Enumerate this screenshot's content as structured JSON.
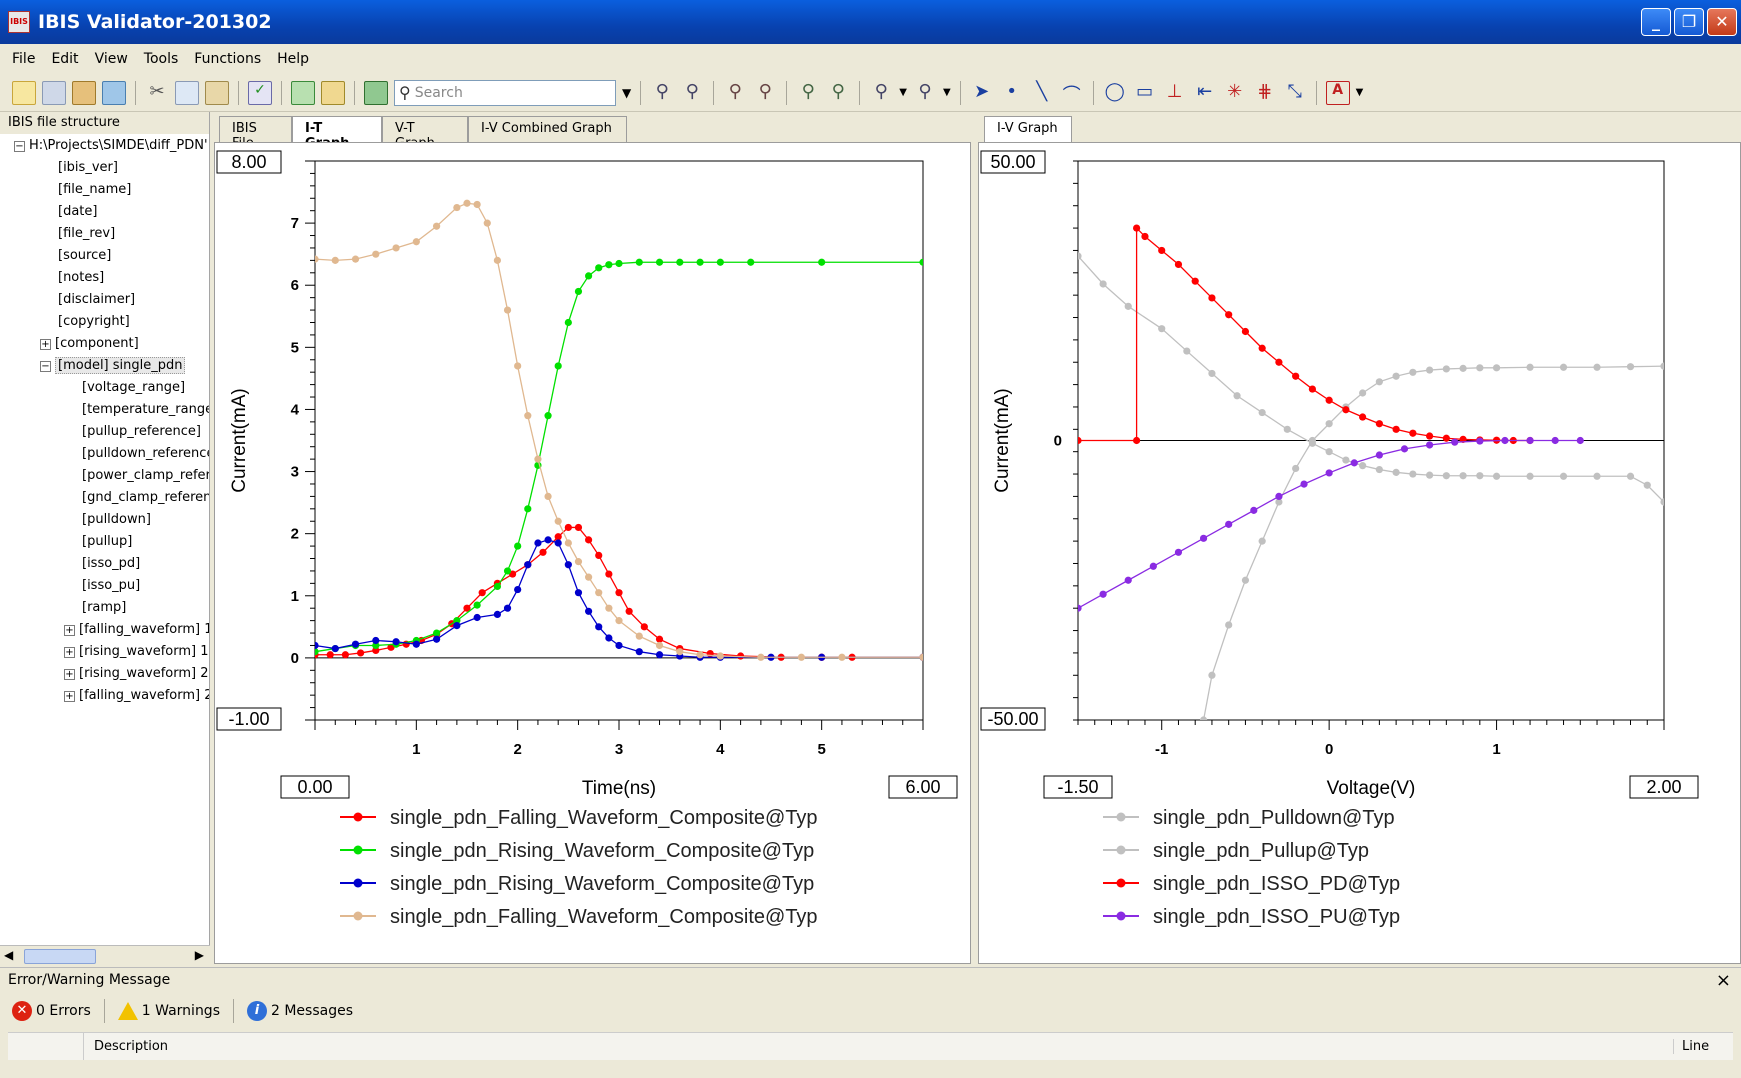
{
  "window": {
    "title": "IBIS Validator-201302",
    "app_icon_text": "IBIS"
  },
  "menu": [
    "File",
    "Edit",
    "View",
    "Tools",
    "Functions",
    "Help"
  ],
  "toolbar": {
    "search_placeholder": "Search"
  },
  "left_panel": {
    "header": "IBIS file structure",
    "root": "H:\\Projects\\SIMDE\\diff_PDN'",
    "items": [
      "[ibis_ver]",
      "[file_name]",
      "[date]",
      "[file_rev]",
      "[source]",
      "[notes]",
      "[disclaimer]",
      "[copyright]"
    ],
    "component": "[component]",
    "model": "[model] single_pdn",
    "model_items": [
      "[voltage_range]",
      "[temperature_range",
      "[pullup_reference]",
      "[pulldown_reference",
      "[power_clamp_refer",
      "[gnd_clamp_referen",
      "[pulldown]",
      "[pullup]",
      "[isso_pd]",
      "[isso_pu]",
      "[ramp]"
    ],
    "waveforms": [
      "[falling_waveform] 1",
      "[rising_waveform] 1",
      "[rising_waveform] 2",
      "[falling_waveform] 2"
    ]
  },
  "center_tabs": [
    "IBIS File",
    "I-T Graph",
    "V-T Graph",
    "I-V Combined Graph"
  ],
  "right_tabs": [
    "I-V Graph"
  ],
  "chart_data": [
    {
      "type": "line",
      "xlabel": "Time(ns)",
      "ylabel": "Current(mA)",
      "xlim": [
        0,
        6
      ],
      "ylim": [
        -1,
        8
      ],
      "xlim_labels": [
        "0.00",
        "6.00"
      ],
      "ylim_labels": [
        "8.00",
        "-1.00"
      ],
      "xticks": [
        "1",
        "2",
        "3",
        "4",
        "5"
      ],
      "yticks": [
        "7",
        "6",
        "5",
        "4",
        "3",
        "2",
        "1",
        "0"
      ],
      "series": [
        {
          "name": "single_pdn_Falling_Waveform_Composite@Typ",
          "color": "#ff0000",
          "x": [
            0,
            0.15,
            0.3,
            0.45,
            0.6,
            0.75,
            0.9,
            1.05,
            1.2,
            1.35,
            1.5,
            1.65,
            1.8,
            1.95,
            2.1,
            2.25,
            2.4,
            2.5,
            2.6,
            2.7,
            2.8,
            2.9,
            3.0,
            3.1,
            3.25,
            3.4,
            3.6,
            3.9,
            4.2,
            4.6,
            5.0,
            5.3,
            6.0
          ],
          "y": [
            0.05,
            0.05,
            0.05,
            0.08,
            0.12,
            0.17,
            0.22,
            0.28,
            0.38,
            0.55,
            0.8,
            1.05,
            1.2,
            1.35,
            1.5,
            1.7,
            1.95,
            2.1,
            2.1,
            1.9,
            1.65,
            1.35,
            1.05,
            0.75,
            0.5,
            0.3,
            0.15,
            0.07,
            0.03,
            0.01,
            0.01,
            0.01,
            0.01
          ]
        },
        {
          "name": "single_pdn_Rising_Waveform_Composite@Typ",
          "color": "#00e000",
          "x": [
            0,
            0.2,
            0.4,
            0.6,
            0.8,
            1.0,
            1.2,
            1.4,
            1.6,
            1.8,
            1.9,
            2.0,
            2.1,
            2.2,
            2.3,
            2.4,
            2.5,
            2.6,
            2.7,
            2.8,
            2.9,
            3.0,
            3.2,
            3.4,
            3.6,
            3.8,
            4.0,
            4.3,
            5,
            6
          ],
          "y": [
            0.1,
            0.15,
            0.2,
            0.2,
            0.22,
            0.28,
            0.4,
            0.6,
            0.85,
            1.15,
            1.4,
            1.8,
            2.4,
            3.1,
            3.9,
            4.7,
            5.4,
            5.9,
            6.15,
            6.28,
            6.33,
            6.35,
            6.37,
            6.37,
            6.37,
            6.37,
            6.37,
            6.37,
            6.37,
            6.37
          ]
        },
        {
          "name": "single_pdn_Rising_Waveform_Composite@Typ",
          "color": "#0000cc",
          "x": [
            0,
            0.2,
            0.4,
            0.6,
            0.8,
            1.0,
            1.2,
            1.4,
            1.6,
            1.8,
            1.9,
            2.0,
            2.1,
            2.2,
            2.3,
            2.4,
            2.5,
            2.6,
            2.7,
            2.8,
            2.9,
            3.0,
            3.2,
            3.4,
            3.6,
            3.8,
            4.0,
            4.5,
            5,
            6
          ],
          "y": [
            0.2,
            0.15,
            0.22,
            0.28,
            0.26,
            0.22,
            0.3,
            0.52,
            0.65,
            0.7,
            0.8,
            1.1,
            1.5,
            1.85,
            1.9,
            1.85,
            1.5,
            1.05,
            0.75,
            0.5,
            0.32,
            0.2,
            0.1,
            0.05,
            0.03,
            0.01,
            0.01,
            0.01,
            0.01,
            0.01
          ]
        },
        {
          "name": "single_pdn_Falling_Waveform_Composite@Typ",
          "color": "#e0b890",
          "x": [
            0,
            0.2,
            0.4,
            0.6,
            0.8,
            1.0,
            1.2,
            1.4,
            1.5,
            1.6,
            1.7,
            1.8,
            1.9,
            2.0,
            2.1,
            2.2,
            2.3,
            2.4,
            2.5,
            2.6,
            2.7,
            2.8,
            2.9,
            3.0,
            3.2,
            3.4,
            3.6,
            3.8,
            4.0,
            4.4,
            4.8,
            5.2,
            6.0
          ],
          "y": [
            6.42,
            6.4,
            6.42,
            6.5,
            6.6,
            6.7,
            6.95,
            7.25,
            7.32,
            7.3,
            7.0,
            6.4,
            5.6,
            4.7,
            3.9,
            3.2,
            2.6,
            2.2,
            1.85,
            1.55,
            1.3,
            1.05,
            0.8,
            0.6,
            0.35,
            0.2,
            0.1,
            0.05,
            0.03,
            0.01,
            0.01,
            0.01,
            0.01
          ]
        }
      ]
    },
    {
      "type": "line",
      "xlabel": "Voltage(V)",
      "ylabel": "Current(mA)",
      "xlim": [
        -1.5,
        2.0
      ],
      "ylim": [
        -50,
        50
      ],
      "xlim_labels": [
        "-1.50",
        "2.00"
      ],
      "ylim_labels": [
        "50.00",
        "-50.00"
      ],
      "xticks": [
        "-1",
        "0",
        "1"
      ],
      "yticks": [
        "0"
      ],
      "series": [
        {
          "name": "single_pdn_Pulldown@Typ",
          "color": "#c0c0c0",
          "x": [
            -1.5,
            -1.35,
            -1.2,
            -1.0,
            -0.85,
            -0.7,
            -0.55,
            -0.4,
            -0.25,
            -0.1,
            0.0,
            0.1,
            0.2,
            0.3,
            0.4,
            0.5,
            0.6,
            0.7,
            0.8,
            0.9,
            1.0,
            1.2,
            1.4,
            1.6,
            1.8,
            1.9,
            2.0
          ],
          "y": [
            33,
            28,
            24,
            20,
            16,
            12,
            8,
            5,
            2,
            -0.5,
            -2,
            -3.5,
            -4.5,
            -5.2,
            -5.7,
            -6,
            -6.2,
            -6.3,
            -6.3,
            -6.3,
            -6.4,
            -6.4,
            -6.4,
            -6.4,
            -6.4,
            -8,
            -11
          ]
        },
        {
          "name": "single_pdn_Pullup@Typ",
          "color": "#c0c0c0",
          "x": [
            -0.75,
            -0.7,
            -0.6,
            -0.5,
            -0.4,
            -0.3,
            -0.2,
            -0.1,
            0.0,
            0.1,
            0.2,
            0.3,
            0.4,
            0.5,
            0.6,
            0.7,
            0.8,
            0.9,
            1.0,
            1.2,
            1.4,
            1.6,
            1.8,
            2.0
          ],
          "y": [
            -50,
            -42,
            -33,
            -25,
            -18,
            -11,
            -5,
            0,
            3,
            6,
            8.5,
            10.5,
            11.5,
            12.2,
            12.6,
            12.8,
            12.9,
            13,
            13,
            13.1,
            13.1,
            13.1,
            13.2,
            13.3
          ]
        },
        {
          "name": "single_pdn_ISSO_PD@Typ",
          "color": "#ff0000",
          "x": [
            -1.5,
            -1.15,
            -1.15,
            -1.1,
            -1.0,
            -0.9,
            -0.8,
            -0.7,
            -0.6,
            -0.5,
            -0.4,
            -0.3,
            -0.2,
            -0.1,
            0.0,
            0.1,
            0.2,
            0.3,
            0.4,
            0.5,
            0.6,
            0.7,
            0.8,
            0.9,
            1.0,
            1.1,
            1.2
          ],
          "y": [
            0,
            0,
            38,
            36.5,
            34,
            31.5,
            28.5,
            25.5,
            22.5,
            19.5,
            16.5,
            14,
            11.5,
            9.2,
            7.2,
            5.5,
            4.2,
            3,
            2,
            1.3,
            0.8,
            0.4,
            0.2,
            0.1,
            0.05,
            0,
            0
          ]
        },
        {
          "name": "single_pdn_ISSO_PU@Typ",
          "color": "#8a2be2",
          "x": [
            -1.5,
            -1.35,
            -1.2,
            -1.05,
            -0.9,
            -0.75,
            -0.6,
            -0.45,
            -0.3,
            -0.15,
            0.0,
            0.15,
            0.3,
            0.45,
            0.6,
            0.75,
            0.9,
            1.05,
            1.2,
            1.35,
            1.5
          ],
          "y": [
            -30,
            -27.5,
            -25,
            -22.5,
            -20,
            -17.5,
            -15,
            -12.5,
            -10,
            -7.8,
            -5.8,
            -4,
            -2.6,
            -1.5,
            -0.8,
            -0.3,
            -0.1,
            0,
            0,
            0,
            0
          ]
        }
      ]
    }
  ],
  "bottom": {
    "header": "Error/Warning Message",
    "close": "×",
    "errors": "0 Errors",
    "warnings": "1 Warnings",
    "messages": "2 Messages",
    "col_description": "Description",
    "col_line": "Line"
  }
}
